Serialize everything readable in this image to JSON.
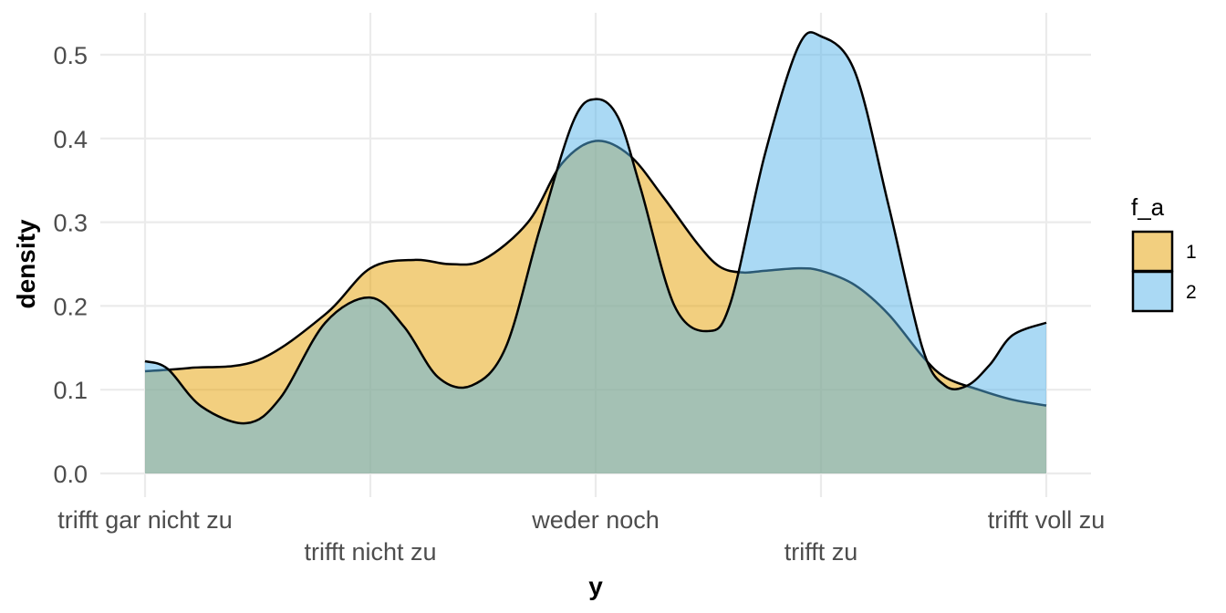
{
  "chart_data": {
    "type": "area",
    "xlabel": "y",
    "ylabel": "density",
    "x_categories": [
      "trifft gar nicht zu",
      "trifft nicht zu",
      "weder noch",
      "trifft zu",
      "trifft voll zu"
    ],
    "xlim": [
      1,
      5
    ],
    "ylim": [
      0,
      0.5
    ],
    "y_ticks": [
      "0.0",
      "0.1",
      "0.2",
      "0.3",
      "0.4",
      "0.5"
    ],
    "grid": true,
    "legend": {
      "title": "f_a",
      "position": "right",
      "entries": [
        {
          "label": "1",
          "color": "#E69F00"
        },
        {
          "label": "2",
          "color": "#56B4E9"
        }
      ]
    },
    "series": [
      {
        "name": "1",
        "color": "#E69F00",
        "x": [
          1.0,
          1.2,
          1.5,
          1.8,
          2.0,
          2.2,
          2.35,
          2.5,
          2.7,
          2.85,
          3.0,
          3.15,
          3.3,
          3.45,
          3.55,
          3.65,
          3.75,
          3.9,
          4.0,
          4.15,
          4.3,
          4.45,
          4.55,
          4.7,
          4.85,
          5.0
        ],
        "y": [
          0.122,
          0.126,
          0.135,
          0.19,
          0.245,
          0.255,
          0.25,
          0.255,
          0.3,
          0.37,
          0.397,
          0.38,
          0.33,
          0.275,
          0.247,
          0.24,
          0.242,
          0.245,
          0.242,
          0.225,
          0.19,
          0.14,
          0.115,
          0.1,
          0.088,
          0.081
        ]
      },
      {
        "name": "2",
        "color": "#56B4E9",
        "x": [
          1.0,
          1.1,
          1.25,
          1.45,
          1.6,
          1.8,
          2.0,
          2.15,
          2.3,
          2.45,
          2.6,
          2.75,
          2.9,
          3.0,
          3.1,
          3.2,
          3.35,
          3.5,
          3.6,
          3.75,
          3.9,
          4.0,
          4.15,
          4.3,
          4.45,
          4.55,
          4.65,
          4.75,
          4.85,
          5.0
        ],
        "y": [
          0.134,
          0.125,
          0.08,
          0.06,
          0.09,
          0.18,
          0.21,
          0.175,
          0.115,
          0.105,
          0.15,
          0.29,
          0.42,
          0.447,
          0.425,
          0.34,
          0.2,
          0.17,
          0.205,
          0.38,
          0.51,
          0.522,
          0.48,
          0.32,
          0.15,
          0.105,
          0.105,
          0.13,
          0.165,
          0.18
        ]
      }
    ]
  }
}
